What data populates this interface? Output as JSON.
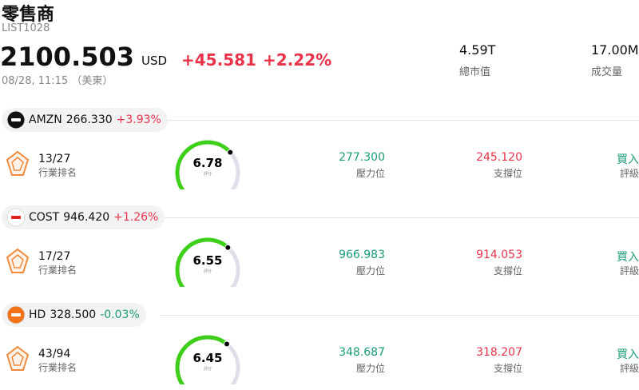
{
  "header": {
    "title": "零售商",
    "code": "LIST1028",
    "price": "2100.503",
    "currency": "USD",
    "change": "+45.581",
    "change_pct": "+2.22%",
    "time": "08/28, 11:15 （美東）",
    "stats": [
      {
        "value": "4.59T",
        "label": "總市值"
      },
      {
        "value": "17.00M",
        "label": "成交量"
      }
    ]
  },
  "stocks": [
    {
      "ticker": "AMZN",
      "price": "266.330",
      "change": "+3.93%",
      "direction": "up",
      "rank": "13/27",
      "rank_label": "行業排名",
      "score": 6.78,
      "score_label": "評分",
      "resistance": "277.300",
      "resistance_label": "壓力位",
      "support": "245.120",
      "support_label": "支撐位",
      "rating": "買入",
      "rating_label": "評級"
    },
    {
      "ticker": "COST",
      "price": "946.420",
      "change": "+1.26%",
      "direction": "up",
      "rank": "17/27",
      "rank_label": "行業排名",
      "score": 6.55,
      "score_label": "評分",
      "resistance": "966.983",
      "resistance_label": "壓力位",
      "support": "914.053",
      "support_label": "支撐位",
      "rating": "買入",
      "rating_label": "評級"
    },
    {
      "ticker": "HD",
      "price": "328.500",
      "change": "-0.03%",
      "direction": "down",
      "rank": "43/94",
      "rank_label": "行業排名",
      "score": 6.45,
      "score_label": "評分",
      "resistance": "348.687",
      "resistance_label": "壓力位",
      "support": "318.207",
      "support_label": "支撐位",
      "rating": "買入",
      "rating_label": "評級"
    }
  ],
  "score_lim": [
    0,
    10
  ]
}
